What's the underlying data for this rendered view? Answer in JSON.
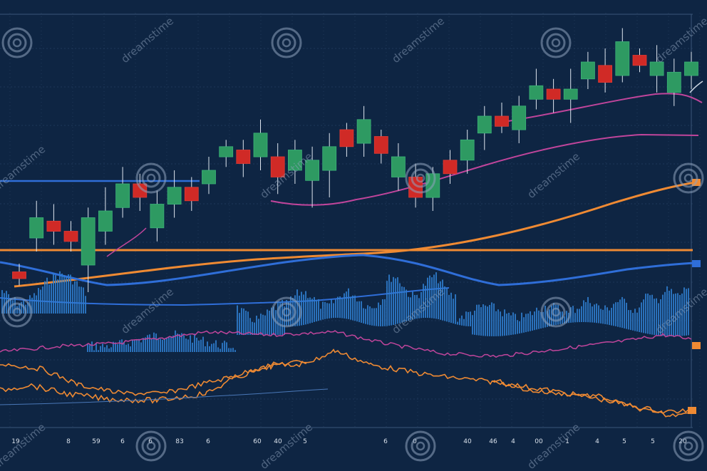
{
  "chart_data": {
    "type": "candlestick",
    "grid": true,
    "background": "#0e2543",
    "colors": {
      "up": "#2e9a62",
      "down": "#d02a26",
      "orange": "#ef8a33",
      "blue": "#2f6ed8",
      "magenta": "#c0459b",
      "volume": "#2f7fd0",
      "grid": "#3a5578",
      "watermark": "#8fa3bd"
    },
    "candles": [
      {
        "o": 3,
        "c": 2,
        "h": 4.2,
        "l": 1
      },
      {
        "o": 8,
        "c": 11,
        "h": 13.5,
        "l": 6
      },
      {
        "o": 10.5,
        "c": 9,
        "h": 13,
        "l": 7
      },
      {
        "o": 9,
        "c": 7.5,
        "h": 10.5,
        "l": 6
      },
      {
        "o": 4,
        "c": 11,
        "h": 12.5,
        "l": 0
      },
      {
        "o": 9,
        "c": 12,
        "h": 15.5,
        "l": 7
      },
      {
        "o": 12.5,
        "c": 16,
        "h": 18.5,
        "l": 11
      },
      {
        "o": 16,
        "c": 14,
        "h": 17.5,
        "l": 12
      },
      {
        "o": 9.5,
        "c": 13,
        "h": 15,
        "l": 7.5
      },
      {
        "o": 13,
        "c": 15.5,
        "h": 18,
        "l": 11
      },
      {
        "o": 15.5,
        "c": 13.5,
        "h": 17,
        "l": 12
      },
      {
        "o": 16,
        "c": 18,
        "h": 20,
        "l": 14.5
      },
      {
        "o": 20,
        "c": 21.5,
        "h": 22.5,
        "l": 18.5
      },
      {
        "o": 21,
        "c": 19,
        "h": 22.5,
        "l": 17
      },
      {
        "o": 20,
        "c": 23.5,
        "h": 25.5,
        "l": 18
      },
      {
        "o": 20,
        "c": 17,
        "h": 22,
        "l": 14.5
      },
      {
        "o": 18,
        "c": 21,
        "h": 22.5,
        "l": 16
      },
      {
        "o": 16.5,
        "c": 19.5,
        "h": 21.5,
        "l": 12.5
      },
      {
        "o": 18,
        "c": 21.5,
        "h": 23.5,
        "l": 14
      },
      {
        "o": 24,
        "c": 21.5,
        "h": 25,
        "l": 20
      },
      {
        "o": 22,
        "c": 25.5,
        "h": 27.5,
        "l": 20
      },
      {
        "o": 23,
        "c": 20.5,
        "h": 24,
        "l": 19
      },
      {
        "o": 17,
        "c": 20,
        "h": 22,
        "l": 15
      },
      {
        "o": 17,
        "c": 14,
        "h": 19,
        "l": 12.5
      },
      {
        "o": 14,
        "c": 17.5,
        "h": 18.5,
        "l": 12
      },
      {
        "o": 19.5,
        "c": 17.5,
        "h": 21,
        "l": 16
      },
      {
        "o": 19.5,
        "c": 22.5,
        "h": 24,
        "l": 17.5
      },
      {
        "o": 23.5,
        "c": 26,
        "h": 27.5,
        "l": 21
      },
      {
        "o": 26,
        "c": 24.5,
        "h": 28,
        "l": 23.5
      },
      {
        "o": 24,
        "c": 27.5,
        "h": 29,
        "l": 22
      },
      {
        "o": 28.5,
        "c": 30.5,
        "h": 33,
        "l": 27
      },
      {
        "o": 30,
        "c": 28.5,
        "h": 31.5,
        "l": 26.5
      },
      {
        "o": 28.5,
        "c": 30,
        "h": 33,
        "l": 25
      },
      {
        "o": 31.5,
        "c": 34,
        "h": 35.5,
        "l": 30
      },
      {
        "o": 33.5,
        "c": 31,
        "h": 36,
        "l": 29.5
      },
      {
        "o": 32,
        "c": 37,
        "h": 39,
        "l": 31
      },
      {
        "o": 35,
        "c": 33.5,
        "h": 36,
        "l": 32.5
      },
      {
        "o": 32,
        "c": 34,
        "h": 36.5,
        "l": 29.5
      },
      {
        "o": 29.5,
        "c": 32.5,
        "h": 34.5,
        "l": 27.5
      },
      {
        "o": 32,
        "c": 34,
        "h": 35.5,
        "l": 30
      }
    ],
    "x_tick_labels": [
      "19",
      "8",
      "59",
      "6",
      "6",
      "83",
      "6",
      "60",
      "40",
      "5",
      "6",
      "0",
      "40",
      "46",
      "4",
      "00",
      "1",
      "4",
      "5",
      "5",
      "20"
    ],
    "watermark_text": "dreamstime"
  }
}
